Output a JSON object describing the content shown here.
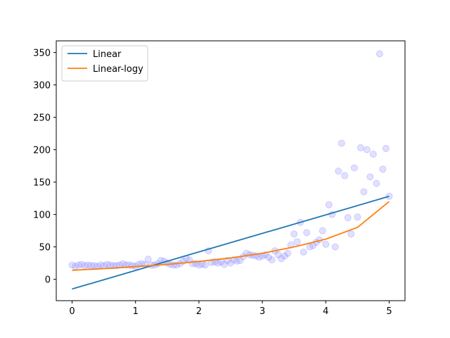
{
  "chart_data": {
    "type": "scatter",
    "title": "",
    "xlabel": "",
    "ylabel": "",
    "xlim": [
      -0.25,
      5.25
    ],
    "ylim": [
      -33,
      368
    ],
    "xticks": [
      0,
      1,
      2,
      3,
      4,
      5
    ],
    "xtick_labels": [
      "0",
      "1",
      "2",
      "3",
      "4",
      "5"
    ],
    "yticks": [
      0,
      50,
      100,
      150,
      200,
      250,
      300,
      350
    ],
    "ytick_labels": [
      "0",
      "50",
      "100",
      "150",
      "200",
      "250",
      "300",
      "350"
    ],
    "grid": false,
    "legend": {
      "placement": "top-left"
    },
    "scatter": {
      "color": "#8888ff",
      "opacity": 0.25,
      "x": [
        0.0,
        0.05,
        0.1,
        0.15,
        0.2,
        0.25,
        0.3,
        0.35,
        0.4,
        0.45,
        0.5,
        0.55,
        0.6,
        0.65,
        0.7,
        0.75,
        0.8,
        0.85,
        0.9,
        0.95,
        1.0,
        1.05,
        1.1,
        1.15,
        1.2,
        1.25,
        1.3,
        1.35,
        1.4,
        1.45,
        1.5,
        1.55,
        1.6,
        1.65,
        1.7,
        1.75,
        1.8,
        1.85,
        1.9,
        1.95,
        2.0,
        2.05,
        2.1,
        2.15,
        2.2,
        2.25,
        2.3,
        2.35,
        2.4,
        2.45,
        2.5,
        2.55,
        2.6,
        2.65,
        2.7,
        2.75,
        2.8,
        2.85,
        2.9,
        2.95,
        3.0,
        3.05,
        3.1,
        3.15,
        3.2,
        3.25,
        3.3,
        3.35,
        3.4,
        3.45,
        3.5,
        3.55,
        3.6,
        3.65,
        3.7,
        3.75,
        3.8,
        3.85,
        3.9,
        3.95,
        4.0,
        4.05,
        4.1,
        4.15,
        4.2,
        4.25,
        4.3,
        4.35,
        4.4,
        4.45,
        4.5,
        4.55,
        4.6,
        4.65,
        4.7,
        4.75,
        4.8,
        4.85,
        4.9,
        4.95,
        5.0
      ],
      "y": [
        22,
        20,
        22,
        23,
        21,
        22,
        21,
        21,
        20,
        22,
        21,
        23,
        22,
        21,
        21,
        22,
        24,
        22,
        22,
        21,
        20,
        23,
        24,
        23,
        31,
        22,
        22,
        24,
        29,
        28,
        25,
        23,
        22,
        22,
        24,
        28,
        32,
        30,
        24,
        24,
        22,
        23,
        22,
        44,
        26,
        27,
        25,
        27,
        23,
        29,
        25,
        30,
        28,
        29,
        35,
        40,
        38,
        37,
        36,
        34,
        36,
        38,
        34,
        30,
        44,
        38,
        32,
        36,
        40,
        53,
        70,
        58,
        88,
        42,
        72,
        50,
        52,
        57,
        61,
        75,
        54,
        115,
        100,
        50,
        167,
        210,
        160,
        95,
        70,
        172,
        96,
        203,
        135,
        200,
        158,
        193,
        148,
        348,
        170,
        202,
        128
      ]
    },
    "series": [
      {
        "name": "Linear",
        "color": "#1f77b4",
        "x": [
          0,
          5
        ],
        "y": [
          -15,
          128
        ]
      },
      {
        "name": "Linear-logy",
        "color": "#ff7f0e",
        "x": [
          0.0,
          0.5,
          1.0,
          1.5,
          2.0,
          2.5,
          3.0,
          3.5,
          4.0,
          4.5,
          5.0
        ],
        "y": [
          14,
          16.5,
          19.5,
          23,
          27.5,
          33,
          40,
          50,
          62,
          80,
          120
        ]
      }
    ]
  }
}
